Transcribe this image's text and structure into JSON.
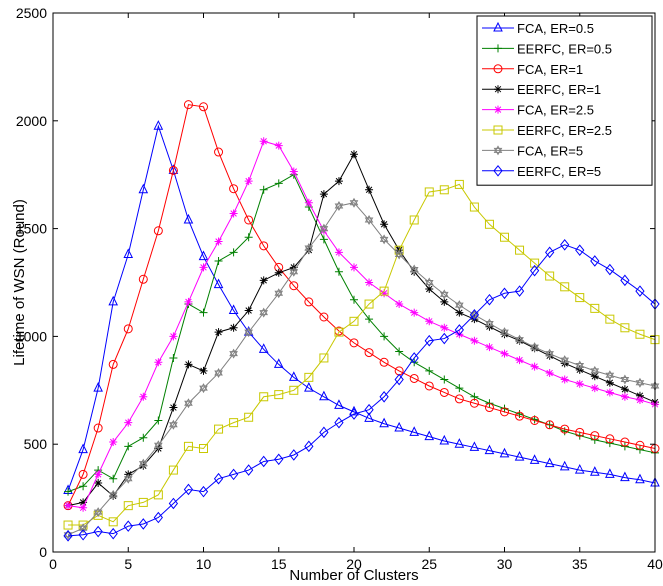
{
  "chart_data": {
    "type": "line",
    "title": "",
    "xlabel": "Number of Clusters",
    "ylabel": "Lifetime of WSN (Round)",
    "xlim": [
      0,
      40
    ],
    "ylim": [
      0,
      2500
    ],
    "xticks": [
      0,
      5,
      10,
      15,
      20,
      25,
      30,
      35,
      40
    ],
    "yticks": [
      0,
      500,
      1000,
      1500,
      2000,
      2500
    ],
    "grid": false,
    "legend_position": "top-right",
    "x": [
      1,
      2,
      3,
      4,
      5,
      6,
      7,
      8,
      9,
      10,
      11,
      12,
      13,
      14,
      15,
      16,
      17,
      18,
      19,
      20,
      21,
      22,
      23,
      24,
      25,
      26,
      27,
      28,
      29,
      30,
      31,
      32,
      33,
      34,
      35,
      36,
      37,
      38,
      39,
      40
    ],
    "series": [
      {
        "name": "FCA, ER=0.5",
        "color": "#0000ff",
        "marker": "triangle",
        "values": [
          285,
          475,
          760,
          1160,
          1380,
          1680,
          1975,
          1770,
          1540,
          1370,
          1240,
          1120,
          1020,
          940,
          870,
          810,
          760,
          720,
          680,
          650,
          620,
          595,
          575,
          555,
          535,
          515,
          500,
          485,
          470,
          455,
          440,
          425,
          410,
          395,
          380,
          370,
          360,
          345,
          335,
          320
        ]
      },
      {
        "name": "EERFC, ER=0.5",
        "color": "#008000",
        "marker": "plus",
        "values": [
          280,
          305,
          380,
          340,
          490,
          530,
          610,
          900,
          1150,
          1110,
          1350,
          1390,
          1460,
          1680,
          1710,
          1750,
          1600,
          1450,
          1300,
          1170,
          1080,
          1000,
          930,
          880,
          840,
          800,
          760,
          720,
          690,
          665,
          640,
          615,
          590,
          560,
          540,
          520,
          505,
          490,
          475,
          460
        ]
      },
      {
        "name": "FCA, ER=1",
        "color": "#ff0000",
        "marker": "circle",
        "values": [
          215,
          360,
          575,
          870,
          1035,
          1265,
          1490,
          1770,
          2075,
          2065,
          1855,
          1685,
          1540,
          1420,
          1320,
          1235,
          1160,
          1090,
          1025,
          970,
          925,
          880,
          840,
          805,
          770,
          740,
          710,
          690,
          670,
          650,
          630,
          610,
          590,
          570,
          555,
          540,
          525,
          510,
          495,
          480
        ]
      },
      {
        "name": "EERFC, ER=1",
        "color": "#000000",
        "marker": "star",
        "values": [
          215,
          230,
          320,
          260,
          360,
          400,
          480,
          670,
          870,
          840,
          1020,
          1040,
          1120,
          1260,
          1295,
          1320,
          1400,
          1660,
          1720,
          1845,
          1680,
          1520,
          1400,
          1300,
          1220,
          1160,
          1110,
          1080,
          1045,
          1010,
          980,
          945,
          910,
          875,
          845,
          815,
          785,
          755,
          725,
          695
        ]
      },
      {
        "name": "FCA, ER=2.5",
        "color": "#ff00ff",
        "marker": "star",
        "values": [
          215,
          205,
          360,
          510,
          600,
          720,
          880,
          1000,
          1160,
          1320,
          1440,
          1570,
          1720,
          1905,
          1885,
          1765,
          1620,
          1490,
          1390,
          1320,
          1250,
          1200,
          1150,
          1110,
          1070,
          1040,
          1010,
          980,
          950,
          920,
          890,
          860,
          830,
          800,
          780,
          760,
          740,
          720,
          705,
          685
        ]
      },
      {
        "name": "EERFC, ER=2.5",
        "color": "#c8c800",
        "marker": "square",
        "values": [
          125,
          125,
          170,
          140,
          215,
          230,
          265,
          380,
          490,
          480,
          570,
          600,
          625,
          720,
          730,
          750,
          810,
          900,
          1020,
          1070,
          1150,
          1210,
          1400,
          1540,
          1670,
          1680,
          1705,
          1600,
          1520,
          1460,
          1400,
          1340,
          1280,
          1230,
          1180,
          1130,
          1080,
          1040,
          1010,
          985
        ]
      },
      {
        "name": "FCA, ER=5",
        "color": "#808080",
        "marker": "hexagram",
        "values": [
          80,
          110,
          185,
          265,
          340,
          410,
          495,
          590,
          690,
          760,
          830,
          920,
          1020,
          1110,
          1200,
          1300,
          1410,
          1500,
          1605,
          1620,
          1540,
          1450,
          1380,
          1310,
          1250,
          1195,
          1145,
          1100,
          1060,
          1020,
          985,
          950,
          920,
          890,
          865,
          840,
          820,
          800,
          785,
          770
        ]
      },
      {
        "name": "EERFC, ER=5",
        "color": "#0000ff",
        "marker": "diamond",
        "values": [
          75,
          80,
          95,
          85,
          120,
          130,
          160,
          225,
          290,
          280,
          340,
          360,
          380,
          420,
          430,
          450,
          490,
          555,
          600,
          640,
          660,
          720,
          800,
          900,
          980,
          990,
          1030,
          1100,
          1170,
          1200,
          1210,
          1305,
          1390,
          1425,
          1400,
          1350,
          1310,
          1260,
          1210,
          1150
        ]
      }
    ]
  }
}
